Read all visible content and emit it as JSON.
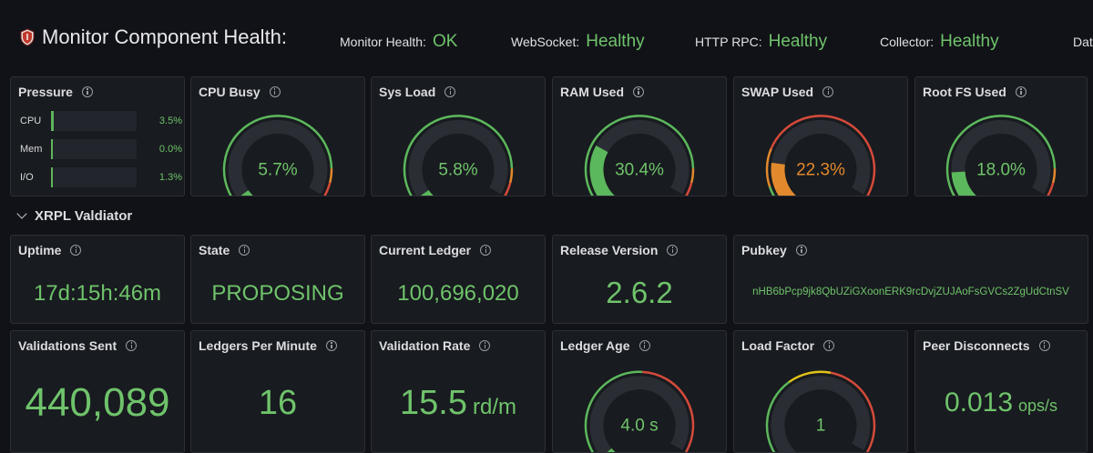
{
  "header": {
    "title": "Monitor Component Health:",
    "stats": [
      {
        "label": "Monitor Health:",
        "value": "OK"
      },
      {
        "label": "WebSocket:",
        "value": "Healthy"
      },
      {
        "label": "HTTP RPC:",
        "value": "Healthy"
      },
      {
        "label": "Collector:",
        "value": "Healthy"
      }
    ],
    "clipped": "Dat"
  },
  "pressure": {
    "title": "Pressure",
    "rows": [
      {
        "label": "CPU",
        "value": "3.5%",
        "fraction": 0.035
      },
      {
        "label": "Mem",
        "value": "0.0%",
        "fraction": 0.0
      },
      {
        "label": "I/O",
        "value": "1.3%",
        "fraction": 0.013
      }
    ]
  },
  "gauges_top": [
    {
      "title": "CPU Busy",
      "display": "5.7%",
      "fraction": 0.057,
      "color": "#5cb85c"
    },
    {
      "title": "Sys Load",
      "display": "5.8%",
      "fraction": 0.058,
      "color": "#5cb85c"
    },
    {
      "title": "RAM Used",
      "display": "30.4%",
      "fraction": 0.304,
      "color": "#5cb85c"
    },
    {
      "title": "SWAP Used",
      "display": "22.3%",
      "fraction": 0.223,
      "color": "#e3892d"
    },
    {
      "title": "Root FS Used",
      "display": "18.0%",
      "fraction": 0.18,
      "color": "#5cb85c"
    }
  ],
  "section": {
    "title": "XRPL Valdiator"
  },
  "stats_row1": [
    {
      "title": "Uptime",
      "value": "17d:15h:46m"
    },
    {
      "title": "State",
      "value": "PROPOSING"
    },
    {
      "title": "Current Ledger",
      "value": "100,696,020"
    },
    {
      "title": "Release Version",
      "value": "2.6.2"
    },
    {
      "title": "Pubkey",
      "value": "nHB6bPcp9jk8QbUZiGXoonERK9rcDvjZUJAoFsGVCs2ZgUdCtnSV"
    }
  ],
  "stats_row2": {
    "validations_sent": {
      "title": "Validations Sent",
      "value": "440,089"
    },
    "ledgers_per_minute": {
      "title": "Ledgers Per Minute",
      "value": "16"
    },
    "validation_rate": {
      "title": "Validation Rate",
      "value": "15.5",
      "unit": "rd/m"
    },
    "ledger_age": {
      "title": "Ledger Age",
      "display": "4.0 s",
      "fraction": 0.04,
      "color": "#5cb85c"
    },
    "load_factor": {
      "title": "Load Factor",
      "display": "1",
      "fraction": 0.0,
      "color": "#5cb85c"
    },
    "peer_disconnects": {
      "title": "Peer Disconnects",
      "value": "0.013",
      "unit": "ops/s"
    }
  },
  "colors": {
    "green": "#6fc36b",
    "gauge_green": "#5cb85c",
    "orange": "#e3892d",
    "red": "#d44a3a",
    "yellow": "#e2c318",
    "track": "#2a2d33",
    "panel": "#181b1f",
    "background": "#111217"
  }
}
